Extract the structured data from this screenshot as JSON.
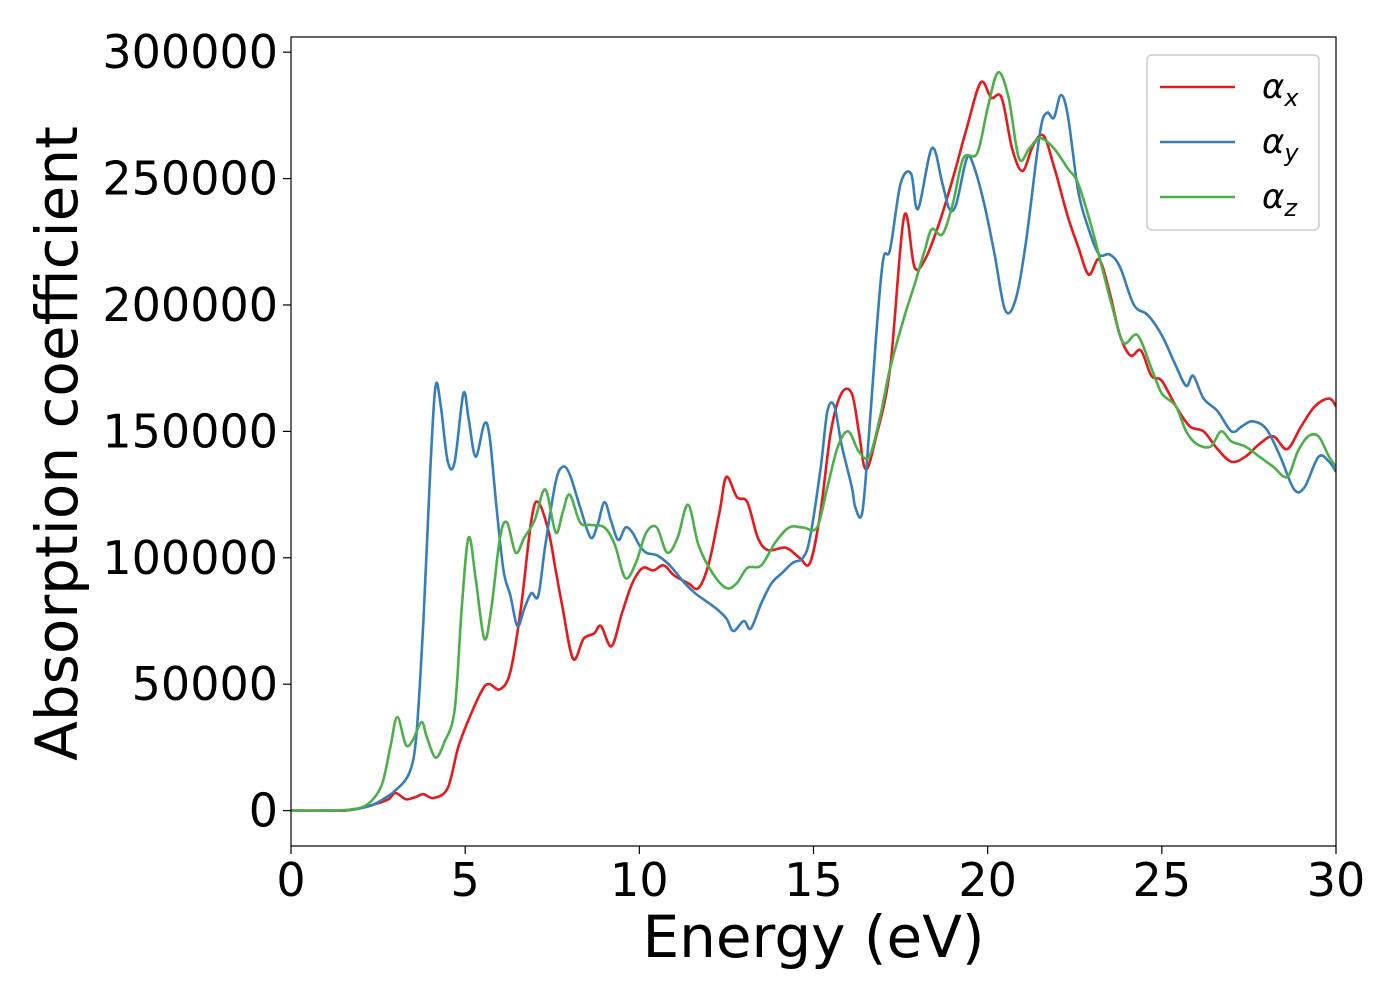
{
  "chart_data": {
    "type": "line",
    "xlabel": "Energy (eV)",
    "ylabel": "Absorption coefficient",
    "xlim": [
      0,
      30
    ],
    "ylim": [
      -14000,
      306000
    ],
    "xticks": [
      0,
      5,
      10,
      15,
      20,
      25,
      30
    ],
    "yticks": [
      0,
      50000,
      100000,
      150000,
      200000,
      250000,
      300000
    ],
    "xtick_labels": [
      "0",
      "5",
      "10",
      "15",
      "20",
      "25",
      "30"
    ],
    "ytick_labels": [
      "0",
      "50000",
      "100000",
      "150000",
      "200000",
      "250000",
      "300000"
    ],
    "grid": false,
    "legend_position": "top-right",
    "series": [
      {
        "name": "α_x",
        "name_base": "α",
        "name_sub": "x",
        "color": "#e41a1c",
        "points": [
          [
            0,
            0
          ],
          [
            1,
            0
          ],
          [
            1.7,
            200
          ],
          [
            2.4,
            2500
          ],
          [
            2.8,
            4500
          ],
          [
            3.0,
            7000
          ],
          [
            3.3,
            4500
          ],
          [
            3.6,
            5500
          ],
          [
            3.8,
            6500
          ],
          [
            4.1,
            5000
          ],
          [
            4.5,
            9000
          ],
          [
            4.8,
            25000
          ],
          [
            5.1,
            36000
          ],
          [
            5.5,
            48000
          ],
          [
            5.7,
            50000
          ],
          [
            6.0,
            48000
          ],
          [
            6.3,
            55000
          ],
          [
            6.6,
            80000
          ],
          [
            6.9,
            115000
          ],
          [
            7.1,
            122000
          ],
          [
            7.4,
            110000
          ],
          [
            7.6,
            95000
          ],
          [
            7.8,
            80000
          ],
          [
            8.1,
            60000
          ],
          [
            8.4,
            68000
          ],
          [
            8.7,
            70000
          ],
          [
            8.9,
            73000
          ],
          [
            9.2,
            65000
          ],
          [
            9.5,
            78000
          ],
          [
            9.8,
            90000
          ],
          [
            10.1,
            96000
          ],
          [
            10.4,
            95000
          ],
          [
            10.7,
            97000
          ],
          [
            11.0,
            93000
          ],
          [
            11.4,
            90000
          ],
          [
            11.7,
            88000
          ],
          [
            12.0,
            98000
          ],
          [
            12.3,
            118000
          ],
          [
            12.5,
            132000
          ],
          [
            12.8,
            124000
          ],
          [
            13.1,
            122000
          ],
          [
            13.4,
            108000
          ],
          [
            13.7,
            103000
          ],
          [
            14.2,
            104000
          ],
          [
            14.6,
            100000
          ],
          [
            14.9,
            98000
          ],
          [
            15.2,
            118000
          ],
          [
            15.5,
            150000
          ],
          [
            15.8,
            165000
          ],
          [
            16.1,
            165000
          ],
          [
            16.3,
            150000
          ],
          [
            16.5,
            135000
          ],
          [
            16.8,
            148000
          ],
          [
            17.2,
            175000
          ],
          [
            17.6,
            235000
          ],
          [
            17.9,
            215000
          ],
          [
            18.2,
            218000
          ],
          [
            18.6,
            232000
          ],
          [
            19.0,
            250000
          ],
          [
            19.4,
            270000
          ],
          [
            19.8,
            288000
          ],
          [
            20.1,
            282000
          ],
          [
            20.4,
            282000
          ],
          [
            20.7,
            262000
          ],
          [
            21.0,
            253000
          ],
          [
            21.3,
            263000
          ],
          [
            21.6,
            267000
          ],
          [
            21.9,
            255000
          ],
          [
            22.3,
            235000
          ],
          [
            22.6,
            223000
          ],
          [
            22.9,
            212000
          ],
          [
            23.2,
            218000
          ],
          [
            23.5,
            205000
          ],
          [
            23.8,
            188000
          ],
          [
            24.1,
            180000
          ],
          [
            24.4,
            182000
          ],
          [
            24.7,
            172000
          ],
          [
            25.0,
            170000
          ],
          [
            25.4,
            160000
          ],
          [
            25.8,
            152000
          ],
          [
            26.2,
            150000
          ],
          [
            26.6,
            143000
          ],
          [
            27.0,
            138000
          ],
          [
            27.4,
            140000
          ],
          [
            27.8,
            145000
          ],
          [
            28.2,
            148000
          ],
          [
            28.6,
            143000
          ],
          [
            29.0,
            152000
          ],
          [
            29.4,
            160000
          ],
          [
            29.8,
            163000
          ],
          [
            30,
            160000
          ]
        ]
      },
      {
        "name": "α_y",
        "name_base": "α",
        "name_sub": "y",
        "color": "#377eb8",
        "points": [
          [
            0,
            0
          ],
          [
            1,
            0
          ],
          [
            1.7,
            300
          ],
          [
            2.3,
            2000
          ],
          [
            2.7,
            5000
          ],
          [
            3.0,
            8000
          ],
          [
            3.4,
            15000
          ],
          [
            3.6,
            30000
          ],
          [
            3.8,
            75000
          ],
          [
            4.0,
            135000
          ],
          [
            4.15,
            168000
          ],
          [
            4.3,
            160000
          ],
          [
            4.5,
            138000
          ],
          [
            4.7,
            138000
          ],
          [
            4.95,
            165000
          ],
          [
            5.1,
            155000
          ],
          [
            5.3,
            140000
          ],
          [
            5.55,
            153000
          ],
          [
            5.7,
            148000
          ],
          [
            5.9,
            120000
          ],
          [
            6.1,
            95000
          ],
          [
            6.3,
            85000
          ],
          [
            6.5,
            73000
          ],
          [
            6.7,
            80000
          ],
          [
            6.9,
            86000
          ],
          [
            7.1,
            85000
          ],
          [
            7.3,
            105000
          ],
          [
            7.6,
            130000
          ],
          [
            7.8,
            136000
          ],
          [
            8.0,
            133000
          ],
          [
            8.3,
            120000
          ],
          [
            8.6,
            108000
          ],
          [
            8.8,
            113000
          ],
          [
            9.0,
            122000
          ],
          [
            9.2,
            114000
          ],
          [
            9.4,
            107000
          ],
          [
            9.6,
            112000
          ],
          [
            9.8,
            110000
          ],
          [
            10.0,
            105000
          ],
          [
            10.2,
            102000
          ],
          [
            10.5,
            101000
          ],
          [
            10.8,
            98000
          ],
          [
            11.0,
            95000
          ],
          [
            11.3,
            90000
          ],
          [
            11.6,
            86000
          ],
          [
            11.9,
            83000
          ],
          [
            12.2,
            80000
          ],
          [
            12.5,
            76000
          ],
          [
            12.7,
            71000
          ],
          [
            13.0,
            75000
          ],
          [
            13.2,
            72000
          ],
          [
            13.5,
            82000
          ],
          [
            13.8,
            90000
          ],
          [
            14.1,
            94000
          ],
          [
            14.4,
            98000
          ],
          [
            14.7,
            100000
          ],
          [
            14.9,
            108000
          ],
          [
            15.2,
            135000
          ],
          [
            15.4,
            158000
          ],
          [
            15.6,
            160000
          ],
          [
            15.8,
            145000
          ],
          [
            16.1,
            128000
          ],
          [
            16.2,
            120000
          ],
          [
            16.4,
            118000
          ],
          [
            16.6,
            150000
          ],
          [
            16.8,
            188000
          ],
          [
            17.0,
            218000
          ],
          [
            17.2,
            222000
          ],
          [
            17.5,
            248000
          ],
          [
            17.8,
            252000
          ],
          [
            18.0,
            238000
          ],
          [
            18.4,
            262000
          ],
          [
            18.7,
            248000
          ],
          [
            18.9,
            238000
          ],
          [
            19.1,
            240000
          ],
          [
            19.4,
            258000
          ],
          [
            19.6,
            255000
          ],
          [
            19.9,
            240000
          ],
          [
            20.2,
            220000
          ],
          [
            20.5,
            198000
          ],
          [
            20.8,
            202000
          ],
          [
            21.1,
            225000
          ],
          [
            21.5,
            268000
          ],
          [
            21.7,
            276000
          ],
          [
            21.9,
            274000
          ],
          [
            22.1,
            283000
          ],
          [
            22.3,
            275000
          ],
          [
            22.6,
            245000
          ],
          [
            22.9,
            230000
          ],
          [
            23.2,
            220000
          ],
          [
            23.5,
            220000
          ],
          [
            23.8,
            215000
          ],
          [
            24.2,
            200000
          ],
          [
            24.6,
            196000
          ],
          [
            25.0,
            188000
          ],
          [
            25.4,
            176000
          ],
          [
            25.7,
            168000
          ],
          [
            25.9,
            172000
          ],
          [
            26.2,
            163000
          ],
          [
            26.6,
            158000
          ],
          [
            27.0,
            150000
          ],
          [
            27.3,
            152000
          ],
          [
            27.6,
            154000
          ],
          [
            28.0,
            151000
          ],
          [
            28.4,
            140000
          ],
          [
            28.8,
            127000
          ],
          [
            29.1,
            128000
          ],
          [
            29.5,
            140000
          ],
          [
            29.8,
            138000
          ],
          [
            30,
            134000
          ]
        ]
      },
      {
        "name": "α_z",
        "name_base": "α",
        "name_sub": "z",
        "color": "#4daf4a",
        "points": [
          [
            0,
            0
          ],
          [
            1,
            0
          ],
          [
            1.7,
            400
          ],
          [
            2.2,
            2500
          ],
          [
            2.6,
            10000
          ],
          [
            2.85,
            25000
          ],
          [
            3.05,
            37000
          ],
          [
            3.3,
            26000
          ],
          [
            3.5,
            28000
          ],
          [
            3.75,
            35000
          ],
          [
            3.9,
            29000
          ],
          [
            4.15,
            21000
          ],
          [
            4.4,
            27000
          ],
          [
            4.7,
            40000
          ],
          [
            4.9,
            80000
          ],
          [
            5.1,
            108000
          ],
          [
            5.3,
            92000
          ],
          [
            5.55,
            68000
          ],
          [
            5.75,
            80000
          ],
          [
            6.0,
            108000
          ],
          [
            6.2,
            114000
          ],
          [
            6.45,
            102000
          ],
          [
            6.7,
            108000
          ],
          [
            7.0,
            115000
          ],
          [
            7.3,
            127000
          ],
          [
            7.6,
            110000
          ],
          [
            7.8,
            118000
          ],
          [
            8.0,
            125000
          ],
          [
            8.3,
            114000
          ],
          [
            8.6,
            113000
          ],
          [
            9.0,
            112000
          ],
          [
            9.3,
            105000
          ],
          [
            9.6,
            92000
          ],
          [
            9.9,
            98000
          ],
          [
            10.2,
            110000
          ],
          [
            10.5,
            112000
          ],
          [
            10.8,
            102000
          ],
          [
            11.1,
            108000
          ],
          [
            11.4,
            121000
          ],
          [
            11.7,
            105000
          ],
          [
            12.1,
            94000
          ],
          [
            12.5,
            88000
          ],
          [
            12.8,
            90000
          ],
          [
            13.1,
            96000
          ],
          [
            13.5,
            97000
          ],
          [
            13.9,
            106000
          ],
          [
            14.3,
            112000
          ],
          [
            14.7,
            112000
          ],
          [
            15.1,
            112000
          ],
          [
            15.4,
            128000
          ],
          [
            15.7,
            144000
          ],
          [
            16.0,
            150000
          ],
          [
            16.3,
            142000
          ],
          [
            16.6,
            140000
          ],
          [
            16.9,
            155000
          ],
          [
            17.2,
            175000
          ],
          [
            17.6,
            195000
          ],
          [
            17.9,
            208000
          ],
          [
            18.2,
            222000
          ],
          [
            18.4,
            230000
          ],
          [
            18.7,
            228000
          ],
          [
            19.0,
            240000
          ],
          [
            19.3,
            258000
          ],
          [
            19.7,
            260000
          ],
          [
            20.0,
            278000
          ],
          [
            20.3,
            292000
          ],
          [
            20.6,
            282000
          ],
          [
            20.9,
            258000
          ],
          [
            21.2,
            262000
          ],
          [
            21.5,
            266000
          ],
          [
            21.9,
            262000
          ],
          [
            22.3,
            254000
          ],
          [
            22.6,
            248000
          ],
          [
            23.0,
            230000
          ],
          [
            23.3,
            214000
          ],
          [
            23.6,
            198000
          ],
          [
            23.9,
            185000
          ],
          [
            24.3,
            188000
          ],
          [
            24.7,
            175000
          ],
          [
            25.0,
            165000
          ],
          [
            25.4,
            160000
          ],
          [
            25.7,
            150000
          ],
          [
            26.0,
            145000
          ],
          [
            26.4,
            144000
          ],
          [
            26.7,
            150000
          ],
          [
            27.0,
            146000
          ],
          [
            27.4,
            144000
          ],
          [
            27.8,
            140000
          ],
          [
            28.2,
            136000
          ],
          [
            28.6,
            132000
          ],
          [
            28.9,
            142000
          ],
          [
            29.2,
            148000
          ],
          [
            29.5,
            148000
          ],
          [
            29.8,
            140000
          ],
          [
            30,
            136000
          ]
        ]
      }
    ]
  }
}
